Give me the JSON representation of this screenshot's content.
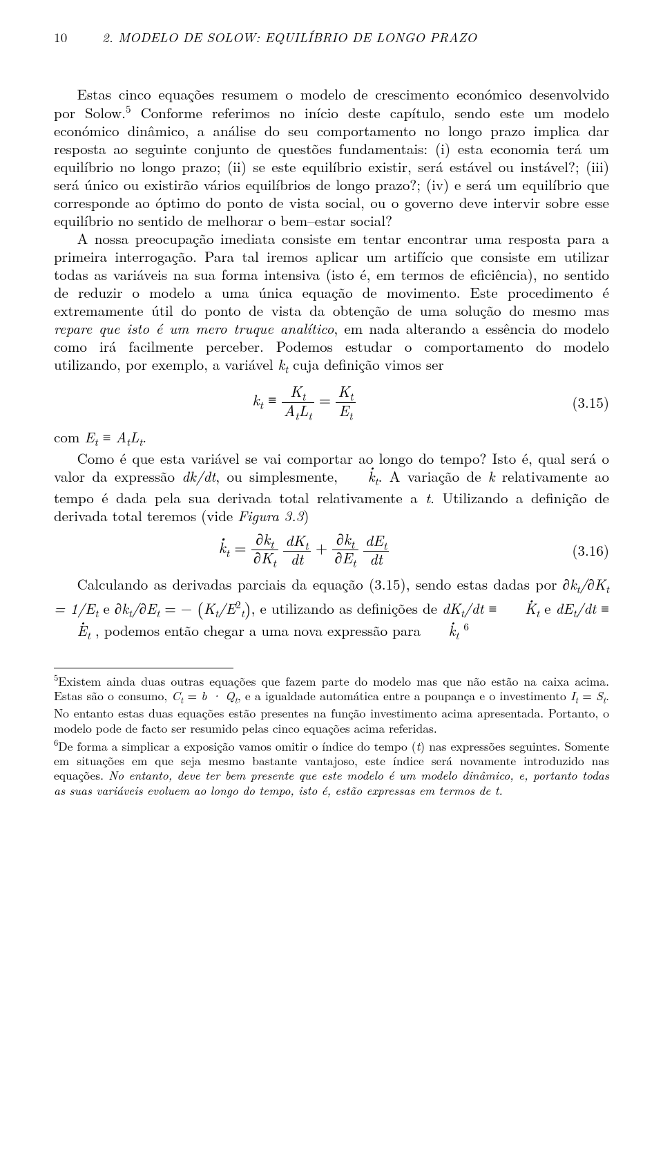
{
  "page": {
    "number": "10",
    "running_title": "2. MODELO DE SOLOW: EQUILÍBRIO DE LONGO PRAZO"
  },
  "paragraphs": {
    "p1": "Estas cinco equações resumem o modelo de crescimento económico desenvolvido por Solow.",
    "p2_start": " Conforme referimos no início deste capítulo, sendo este um modelo económico dinâmico, a análise do seu comportamento no longo prazo implica dar resposta ao seguinte conjunto de questões fundamentais: (i) esta economia terá um equilíbrio no longo prazo; (ii) se este equilíbrio existir, será estável ou instável?; (iii) será único ou existirão vários equilíbrios de longo prazo?; (iv) e será um equilíbrio que corresponde ao óptimo do ponto de vista social, ou o governo deve intervir sobre esse equilíbrio no sentido de melhorar o bem–estar social?",
    "p3": "A nossa preocupação imediata consiste em tentar encontrar uma resposta para a primeira interrogação. Para tal iremos aplicar um artifício que consiste em utilizar todas as variáveis na sua forma intensiva (isto é, em termos de eficiência), no sentido de reduzir o modelo a uma única equação de movimento. Este procedimento é extremamente útil do ponto de vista da obtenção de uma solução do mesmo mas ",
    "p3_ital": "repare que isto é um mero truque analítico",
    "p3_end": ", em nada alterando a essência do modelo como irá facilmente perceber. Podemos estudar o comportamento do modelo utilizando, por exemplo, a variável ",
    "p3_var": "k",
    "p3_sub": "t",
    "p3_close": " cuja definição vimos ser",
    "p4": "com ",
    "p4_eq": "E",
    "p4_sub1": "t",
    "p4_mid": " ≡ ",
    "p4_eq2": "A",
    "p4_sub2": "t",
    "p4_eq3": "L",
    "p4_sub3": "t",
    "p4_end": ".",
    "p5_a": "Como é que esta variável se vai comportar ao longo do tempo? Isto é, qual será o valor da expressão ",
    "p5_expr1": "dk/dt",
    "p5_b": ", ou simplesmente, ",
    "p5_kdot": "k",
    "p5_kdot_sub": "t",
    "p5_c": ". A variação de ",
    "p5_k": "k",
    "p5_d": " relativamente ao tempo é dada pela sua derivada total relativamente a ",
    "p5_t": "t",
    "p5_e": ". Utilizando a definição de derivada total teremos (vide ",
    "p5_fig": "Figura 3.3",
    "p5_f": ")",
    "p6_a": "Calculando as derivadas parciais da equação (3.15), sendo estas dadas por ",
    "p6_expr1": "∂k",
    "p6_b": "/∂K",
    "p6_c": " = 1/E",
    "p6_d": " e ",
    "p6_expr2": "∂k",
    "p6_e": "/∂E",
    "p6_f": " = − ",
    "p6_bigK": "K",
    "p6_slashE": "/E",
    "p6_sup2": "2",
    "p6_g": ", e utilizando as definições de ",
    "p6_dK": "dK",
    "p6_dt": "/dt",
    "p6_equiv": " ≡ ",
    "p6_Kdot": "K",
    "p6_and": " e ",
    "p6_dE": "dE",
    "p6_Edot": "E",
    "p6_h": " , podemos então chegar a uma nova expressão para ",
    "p6_kdot2": "k",
    "p6_foot6": "6"
  },
  "equations": {
    "eq315": {
      "lhs_var": "k",
      "lhs_sub": "t",
      "equiv": " ≡ ",
      "frac1_num_K": "K",
      "frac1_num_sub": "t",
      "frac1_den_A": "A",
      "frac1_den_Asub": "t",
      "frac1_den_L": "L",
      "frac1_den_Lsub": "t",
      "eq": " = ",
      "frac2_num_K": "K",
      "frac2_num_sub": "t",
      "frac2_den_E": "E",
      "frac2_den_sub": "t",
      "number": "(3.15)"
    },
    "eq316": {
      "lhs_kdot": "k",
      "lhs_sub": "t",
      "eq": " = ",
      "f1_num_dk": "∂k",
      "f1_num_sub": "t",
      "f1_den_dK": "∂K",
      "f1_den_sub": "t",
      "f2_num_dK": "dK",
      "f2_num_sub": "t",
      "f2_den_dt": "dt",
      "plus": " + ",
      "f3_num_dk": "∂k",
      "f3_num_sub": "t",
      "f3_den_dE": "∂E",
      "f3_den_sub": "t",
      "f4_num_dE": "dE",
      "f4_num_sub": "t",
      "f4_den_dt": "dt",
      "number": "(3.16)"
    }
  },
  "footnotes": {
    "f5_mark": "5",
    "f5_a": "Existem ainda duas outras equações que fazem parte do modelo mas que não estão na caixa acima. Estas são o consumo, ",
    "f5_C": "C",
    "f5_t": "t",
    "f5_eq": " = ",
    "f5_b": "b · Q",
    "f5_b2": ", e a igualdade automática entre a poupança e o investimento ",
    "f5_I": "I",
    "f5_eq2": " = ",
    "f5_S": "S",
    "f5_c": ". No entanto estas duas equações estão presentes na função investimento acima apresentada. Portanto, o modelo pode de facto ser resumido pelas cinco equações acima referidas.",
    "f6_mark": "6",
    "f6_a": "De forma a simplicar a exposição vamos omitir o índice do tempo (",
    "f6_t": "t",
    "f6_b": ") nas expressões seguintes. Somente em situações em que seja mesmo bastante vantajoso, este índice será novamente introduzido nas equações. ",
    "f6_ital": "No entanto, deve ter bem presente que este modelo é um modelo dinâmico, e, portanto todas as suas variáveis evoluem ao longo do tempo, isto é, estão expressas em termos de t."
  }
}
